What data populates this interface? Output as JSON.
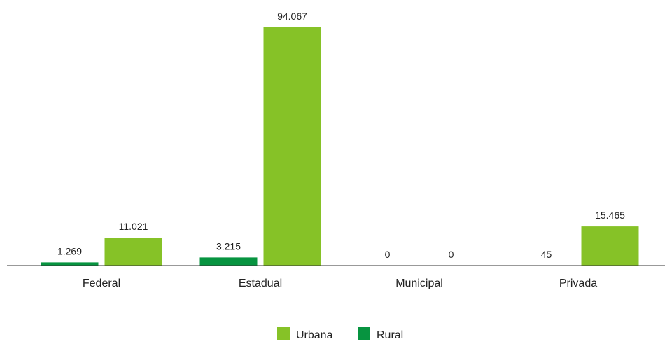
{
  "chart_data": {
    "type": "bar",
    "categories": [
      "Federal",
      "Estadual",
      "Municipal",
      "Privada"
    ],
    "series": [
      {
        "name": "Rural",
        "color": "#079440",
        "values": [
          1269,
          3215,
          0,
          45
        ]
      },
      {
        "name": "Urbana",
        "color": "#86c227",
        "values": [
          11021,
          94067,
          0,
          15465
        ]
      }
    ],
    "data_labels": {
      "Rural": [
        "1.269",
        "3.215",
        "0",
        "45"
      ],
      "Urbana": [
        "11.021",
        "94.067",
        "0",
        "15.465"
      ]
    },
    "legend_order": [
      "Urbana",
      "Rural"
    ],
    "legend_position": "bottom",
    "ylim": [
      0,
      94067
    ],
    "grid": false,
    "title": "",
    "xlabel": "",
    "ylabel": ""
  }
}
